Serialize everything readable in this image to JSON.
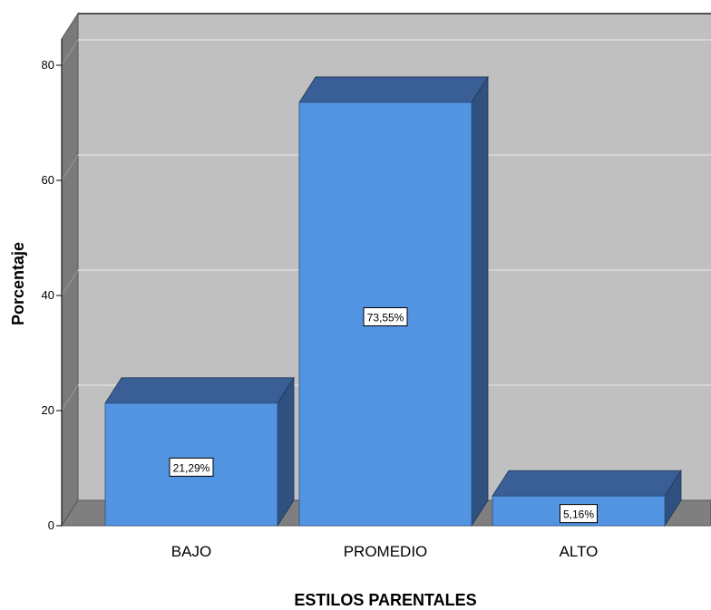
{
  "chart_data": {
    "type": "bar",
    "categories": [
      "BAJO",
      "PROMEDIO",
      "ALTO"
    ],
    "values": [
      21.29,
      73.55,
      5.16
    ],
    "data_labels": [
      "21,29%",
      "73,55%",
      "5,16%"
    ],
    "xlabel": "ESTILOS PARENTALES",
    "ylabel": "Porcentaje",
    "ylim": [
      0,
      80
    ],
    "yticks": [
      0,
      20,
      40,
      60,
      80
    ],
    "ytick_labels": [
      "0",
      "20",
      "40",
      "60",
      "80"
    ],
    "grid": true,
    "style": "3d",
    "colors": {
      "bar_front": "#5294e2",
      "bar_top": "#3a5f96",
      "bar_side": "#2f5180",
      "plot_back": "#c0c0c0",
      "plot_side": "#7a7a7a",
      "plot_floor": "#7f7f7f",
      "gridline": "#dcdcdc"
    }
  }
}
